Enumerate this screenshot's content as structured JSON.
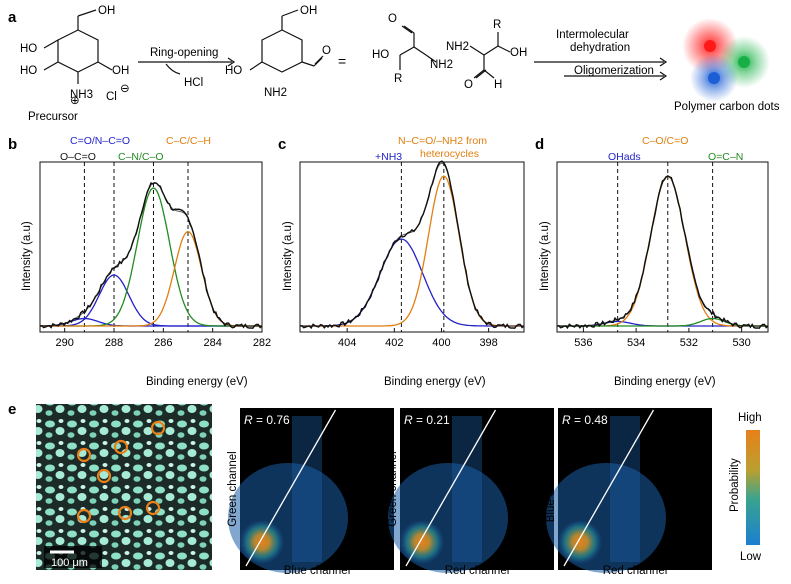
{
  "panels": {
    "a": "a",
    "b": "b",
    "c": "c",
    "d": "d",
    "e": "e"
  },
  "scheme": {
    "precursor_label": "Precursor",
    "ring_opening": "Ring-opening",
    "hcl": "HCl",
    "equals": "=",
    "step1": "Intermolecular",
    "step1b": "dehydration",
    "step2": "Oligomerization",
    "product_label": "Polymer carbon dots",
    "oh": "OH",
    "ho": "HO",
    "nh3": "NH3",
    "nh2": "NH2",
    "cl": "Cl",
    "o": "O",
    "r": "R",
    "h": "H",
    "colors": {
      "red": "#ff2a2a",
      "green": "#1fb34a",
      "blue": "#1d5fd6"
    }
  },
  "xps": {
    "ylabel": "Intensity (a.u)",
    "xlabel": "Binding energy (eV)",
    "b": {
      "xlim": [
        291,
        282
      ],
      "ticks": [
        290,
        288,
        286,
        284,
        282
      ],
      "annotations": [
        {
          "text": "C=O/N–C=O",
          "color": "#2323c8"
        },
        {
          "text": "O–C=O",
          "color": "#111111"
        },
        {
          "text": "C–N/C–O",
          "color": "#228b22"
        },
        {
          "text": "C–C/C–H",
          "color": "#e07f10"
        }
      ],
      "lines_at": [
        289.2,
        288.0,
        286.4,
        285.0
      ]
    },
    "c": {
      "xlim": [
        406,
        396.5
      ],
      "ticks": [
        404,
        402,
        400,
        398
      ],
      "annotations": [
        {
          "text": "+NH3",
          "color": "#2323c8"
        },
        {
          "text": "N–C=O/–NH2 from",
          "color": "#e07f10"
        },
        {
          "text": "heterocycles",
          "color": "#e07f10"
        }
      ],
      "lines_at": [
        401.7,
        399.9
      ]
    },
    "d": {
      "xlim": [
        537,
        529
      ],
      "ticks": [
        536,
        534,
        532,
        530
      ],
      "annotations": [
        {
          "text": "OHads",
          "color": "#2323c8"
        },
        {
          "text": "C–O/C=O",
          "color": "#e07f10"
        },
        {
          "text": "O=C–N",
          "color": "#228b22"
        }
      ],
      "lines_at": [
        534.7,
        532.8,
        531.1
      ]
    }
  },
  "correlation": {
    "scale_bar": "100 μm",
    "plots": [
      {
        "r": "0.76",
        "xlabel": "Blue channel",
        "ylabel": "Green channel"
      },
      {
        "r": "0.21",
        "xlabel": "Red channel",
        "ylabel": "Green channel"
      },
      {
        "r": "0.48",
        "xlabel": "Red channel",
        "ylabel": "Blue channel"
      }
    ],
    "r_prefix": "R",
    "colorbar": {
      "high": "High",
      "low": "Low",
      "title": "Probability"
    }
  },
  "chart_data": [
    {
      "type": "line",
      "panel": "b",
      "xlabel": "Binding energy (eV)",
      "ylabel": "Intensity (a.u)",
      "xlim": [
        291,
        282
      ],
      "series": [
        {
          "name": "O–C=O",
          "center": 289.2,
          "amp": 0.05,
          "color": "#2323c8"
        },
        {
          "name": "C=O/N–C=O",
          "center": 288.0,
          "amp": 0.34,
          "color": "#2323c8"
        },
        {
          "name": "C–N/C–O",
          "center": 286.4,
          "amp": 0.92,
          "color": "#228b22"
        },
        {
          "name": "C–C/C–H",
          "center": 285.0,
          "amp": 0.63,
          "color": "#e07f10"
        }
      ]
    },
    {
      "type": "line",
      "panel": "c",
      "xlabel": "Binding energy (eV)",
      "ylabel": "Intensity (a.u)",
      "xlim": [
        406,
        396.5
      ],
      "series": [
        {
          "name": "+NH3",
          "center": 401.7,
          "amp": 0.58,
          "color": "#2323c8"
        },
        {
          "name": "N–C=O/–NH2 from heterocycles",
          "center": 399.9,
          "amp": 1.0,
          "color": "#e07f10"
        }
      ]
    },
    {
      "type": "line",
      "panel": "d",
      "xlabel": "Binding energy (eV)",
      "ylabel": "Intensity (a.u)",
      "xlim": [
        537,
        529
      ],
      "series": [
        {
          "name": "OHads",
          "center": 534.7,
          "amp": 0.03,
          "color": "#2323c8"
        },
        {
          "name": "C–O/C=O",
          "center": 532.8,
          "amp": 1.0,
          "color": "#e07f10"
        },
        {
          "name": "O=C–N",
          "center": 531.1,
          "amp": 0.05,
          "color": "#228b22"
        }
      ]
    }
  ]
}
